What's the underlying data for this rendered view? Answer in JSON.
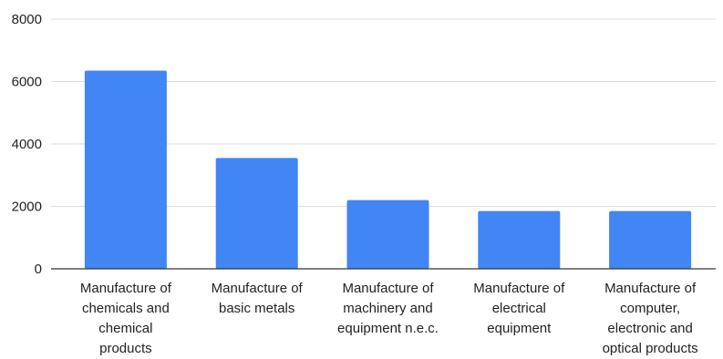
{
  "chart_data": {
    "type": "bar",
    "title": "",
    "xlabel": "",
    "ylabel": "",
    "ylim": [
      0,
      8000
    ],
    "yticks": [
      0,
      2000,
      4000,
      6000,
      8000
    ],
    "grid": true,
    "categories": [
      "Manufacture of chemicals and chemical products",
      "Manufacture of basic metals",
      "Manufacture of machinery and equipment n.e.c.",
      "Manufacture of electrical equipment",
      "Manufacture of computer, electronic and optical products"
    ],
    "category_lines": [
      [
        "Manufacture of",
        "chemicals and",
        "chemical",
        "products"
      ],
      [
        "Manufacture of",
        "basic metals"
      ],
      [
        "Manufacture of",
        "machinery and",
        "equipment n.e.c."
      ],
      [
        "Manufacture of",
        "electrical",
        "equipment"
      ],
      [
        "Manufacture of",
        "computer,",
        "electronic and",
        "optical products"
      ]
    ],
    "values": [
      6350,
      3550,
      2200,
      1850,
      1850
    ],
    "bar_color": "#4285f4",
    "grid_color": "#dddddd",
    "axis_color": "#333333",
    "text_color": "#222222"
  }
}
